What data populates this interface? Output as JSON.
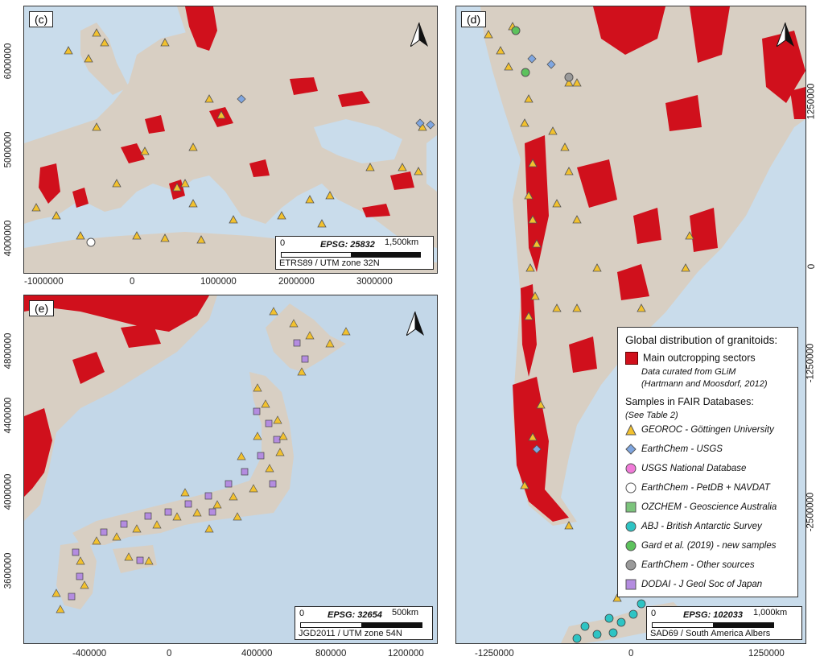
{
  "panels": {
    "c": {
      "label": "(c)",
      "epsg": "EPSG: 25832",
      "scale_zero": "0",
      "scale_length": "1,500km",
      "projection": "ETRS89 / UTM zone 32N",
      "x_ticks": [
        "-1000000",
        "0",
        "1000000",
        "2000000",
        "3000000"
      ],
      "y_ticks": [
        "6000000",
        "5000000",
        "4000000"
      ]
    },
    "d": {
      "label": "(d)",
      "epsg": "EPSG: 102033",
      "scale_zero": "0",
      "scale_length": "1,000km",
      "projection": "SAD69 / South America Albers",
      "x_ticks": [
        "-1250000",
        "0",
        "1250000"
      ],
      "y_ticks": [
        "1250000",
        "0",
        "-1250000",
        "-2500000"
      ]
    },
    "e": {
      "label": "(e)",
      "epsg": "EPSG: 32654",
      "scale_zero": "0",
      "scale_length": "500km",
      "projection": "JGD2011 / UTM zone 54N",
      "x_ticks": [
        "-400000",
        "0",
        "400000",
        "800000",
        "1200000"
      ],
      "y_ticks": [
        "4800000",
        "4400000",
        "4000000",
        "3600000"
      ]
    }
  },
  "legend": {
    "title": "Global distribution of granitoids:",
    "outcrop_label": "Main outcropping sectors",
    "outcrop_sub1": "Data curated from GLiM",
    "outcrop_sub2": "(Hartmann and Moosdorf, 2012)",
    "samples_title": "Samples in FAIR Databases:",
    "samples_sub": "(See Table 2)",
    "items": [
      {
        "label": "GEOROC - Göttingen University",
        "symbol": "triangle-icon",
        "color": "#f2c12e"
      },
      {
        "label": "EarthChem - USGS",
        "symbol": "diamond-icon",
        "color": "#7fa6e0"
      },
      {
        "label": "USGS National Database",
        "symbol": "circle-icon",
        "color": "#f07ad8"
      },
      {
        "label": "EarthChem - PetDB + NAVDAT",
        "symbol": "circle-icon",
        "color": "#ffffff"
      },
      {
        "label": "OZCHEM - Geoscience Australia",
        "symbol": "square-icon",
        "color": "#7cc47c"
      },
      {
        "label": "ABJ - British Antarctic Survey",
        "symbol": "circle-icon",
        "color": "#2ec4c4"
      },
      {
        "label": "Gard et al. (2019) - new samples",
        "symbol": "circle-icon",
        "color": "#5cc25c"
      },
      {
        "label": "EarthChem - Other sources",
        "symbol": "circle-icon",
        "color": "#9a9a9a"
      },
      {
        "label": "DODAI - J Geol Soc of Japan",
        "symbol": "square-icon",
        "color": "#b48ce0"
      }
    ]
  },
  "colors": {
    "sea": "#c9dceb",
    "land": "#d8cfc3",
    "outcrop": "#d0101c",
    "georoc": "#f2c12e",
    "dodai": "#b48ce0"
  }
}
